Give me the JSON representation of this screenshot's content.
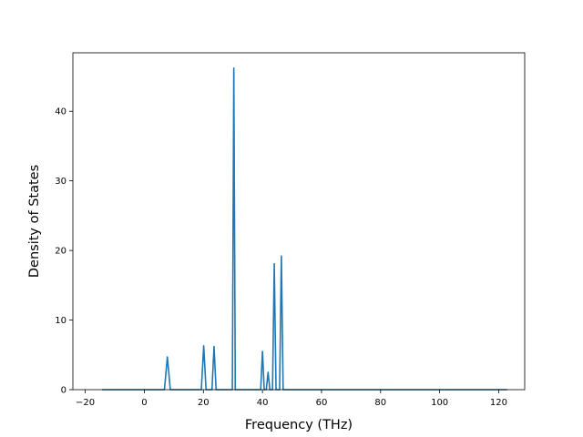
{
  "chart_data": {
    "type": "line",
    "title": "",
    "xlabel": "Frequency (THz)",
    "ylabel": "Density of States",
    "xlim": [
      -24.2,
      128.8
    ],
    "ylim": [
      0,
      48.4
    ],
    "xticks": [
      -20,
      0,
      20,
      40,
      60,
      80,
      100,
      120
    ],
    "yticks": [
      0,
      10,
      20,
      30,
      40
    ],
    "grid": false,
    "legend": "none",
    "series": [
      {
        "color": "#1f77b4",
        "x": [
          -14.3,
          6.8,
          7.8,
          8.8,
          19.3,
          20.1,
          20.9,
          22.9,
          23.6,
          24.3,
          29.8,
          30.3,
          30.8,
          39.4,
          40.0,
          40.6,
          41.3,
          41.9,
          42.5,
          43.4,
          44.0,
          44.6,
          45.8,
          46.4,
          47.0,
          122.8
        ],
        "y": [
          0,
          0,
          4.7,
          0,
          0,
          6.3,
          0,
          0,
          6.2,
          0,
          0,
          46.2,
          0,
          0,
          5.5,
          0,
          0,
          2.5,
          0,
          0,
          18.1,
          0,
          0,
          19.2,
          0,
          0
        ]
      }
    ]
  }
}
